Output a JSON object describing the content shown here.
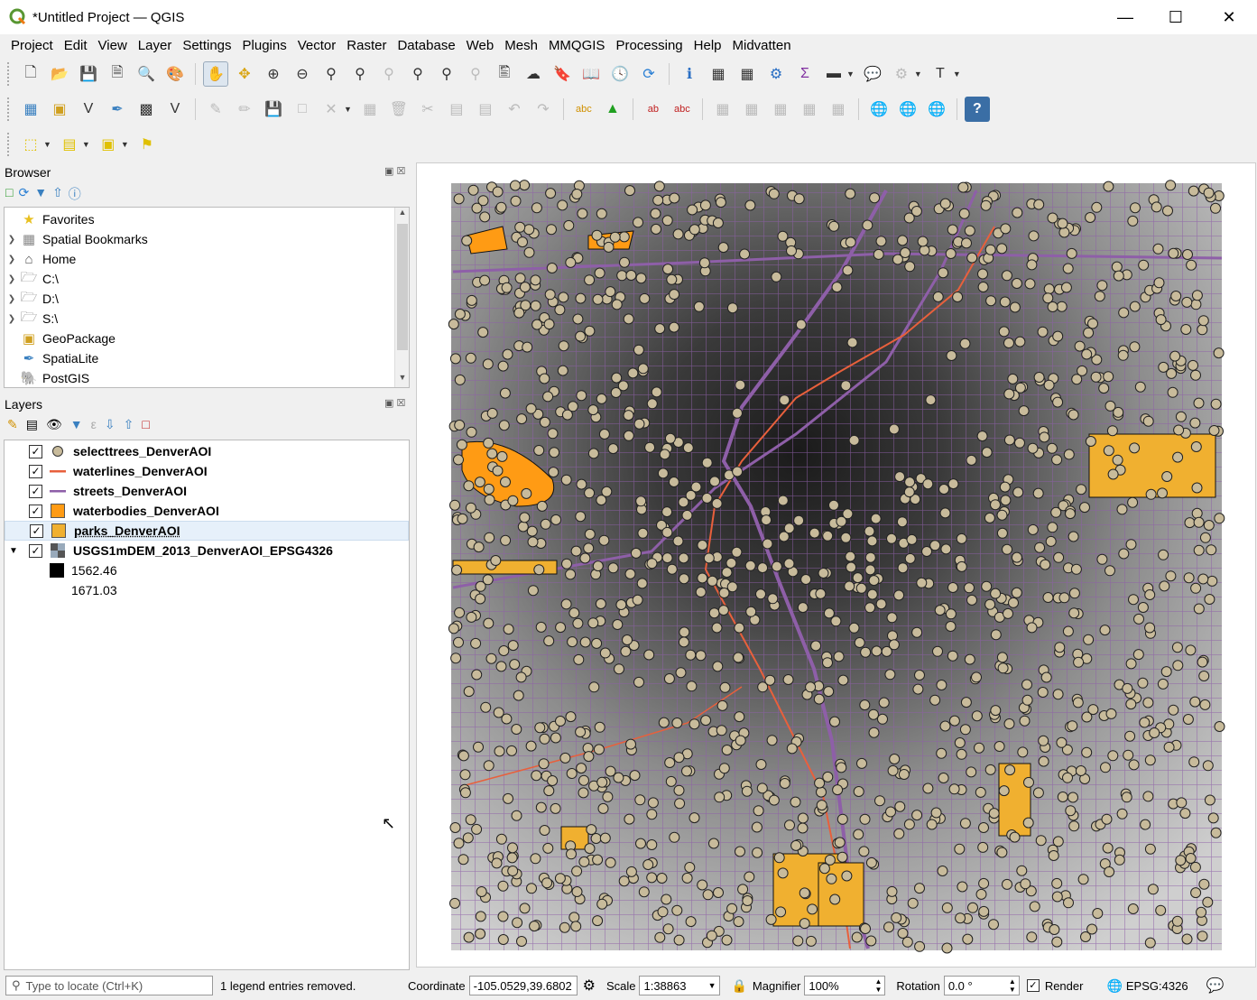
{
  "window": {
    "title": "*Untitled Project — QGIS"
  },
  "menu": [
    "Project",
    "Edit",
    "View",
    "Layer",
    "Settings",
    "Plugins",
    "Vector",
    "Raster",
    "Database",
    "Web",
    "Mesh",
    "MMQGIS",
    "Processing",
    "Help",
    "Midvatten"
  ],
  "browser": {
    "title": "Browser",
    "items": [
      {
        "label": "Favorites",
        "icon": "star-icon",
        "expandable": false
      },
      {
        "label": "Spatial Bookmarks",
        "icon": "bookmark-icon",
        "expandable": true
      },
      {
        "label": "Home",
        "icon": "home-folder-icon",
        "expandable": true
      },
      {
        "label": "C:\\",
        "icon": "folder-icon",
        "expandable": true
      },
      {
        "label": "D:\\",
        "icon": "folder-icon",
        "expandable": true
      },
      {
        "label": "S:\\",
        "icon": "folder-icon",
        "expandable": true
      },
      {
        "label": "GeoPackage",
        "icon": "geopackage-icon",
        "expandable": false
      },
      {
        "label": "SpatiaLite",
        "icon": "spatialite-icon",
        "expandable": false
      },
      {
        "label": "PostGIS",
        "icon": "postgis-icon",
        "expandable": false
      }
    ]
  },
  "layers": {
    "title": "Layers",
    "items": [
      {
        "label": "selecttrees_DenverAOI",
        "checked": true,
        "symbol": "point",
        "color": "#c8bb9b"
      },
      {
        "label": "waterlines_DenverAOI",
        "checked": true,
        "symbol": "line",
        "color": "#e8603c"
      },
      {
        "label": "streets_DenverAOI",
        "checked": true,
        "symbol": "line",
        "color": "#8e5fa8"
      },
      {
        "label": "waterbodies_DenverAOI",
        "checked": true,
        "symbol": "fill",
        "color": "#ff9b14"
      },
      {
        "label": "parks_DenverAOI",
        "checked": true,
        "symbol": "fill",
        "color": "#f0b030",
        "selected": true
      },
      {
        "label": "USGS1mDEM_2013_DenverAOI_EPSG4326",
        "checked": true,
        "symbol": "raster",
        "expanded": true
      }
    ],
    "legend": [
      {
        "label": "1562.46",
        "color": "#000000"
      },
      {
        "label": "1671.03",
        "color": "#ffffff"
      }
    ]
  },
  "status": {
    "locator_placeholder": "Type to locate (Ctrl+K)",
    "message": "1 legend entries removed.",
    "coordinate_label": "Coordinate",
    "coordinate_value": "-105.0529,39.6802",
    "scale_label": "Scale",
    "scale_value": "1:38863",
    "magnifier_label": "Magnifier",
    "magnifier_value": "100%",
    "rotation_label": "Rotation",
    "rotation_value": "0.0 °",
    "render_label": "Render",
    "render_checked": true,
    "crs": "EPSG:4326"
  }
}
